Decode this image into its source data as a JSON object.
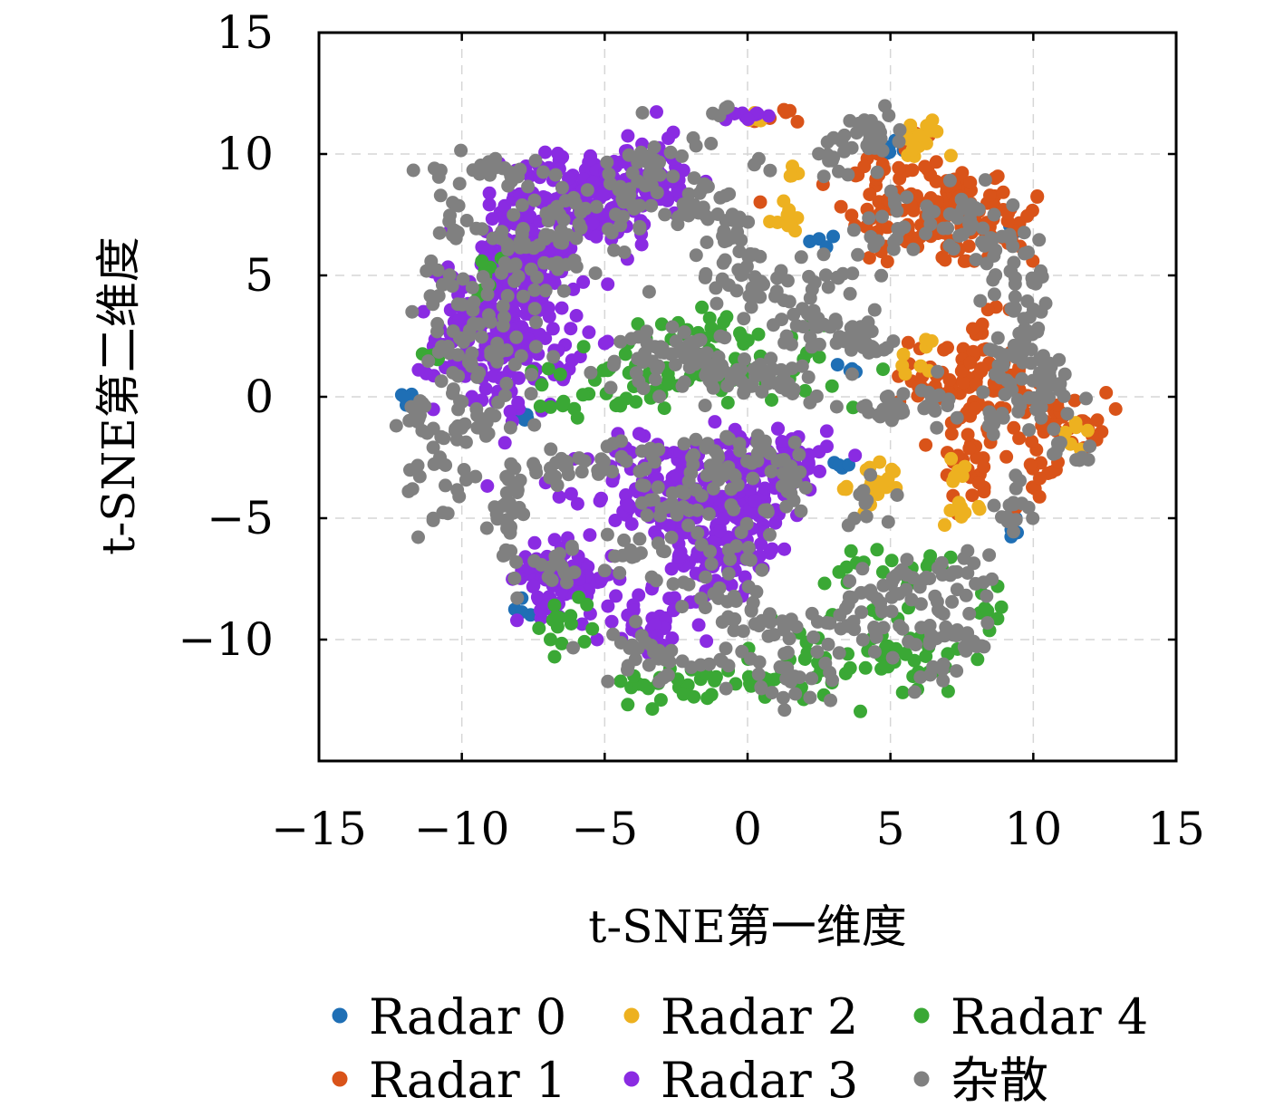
{
  "chart_data": {
    "type": "scatter",
    "title": "",
    "xlabel": "t-SNE第一维度",
    "ylabel": "t-SNE第二维度",
    "xlim": [
      -15,
      15
    ],
    "ylim": [
      -15,
      15
    ],
    "x_ticks": [
      -15,
      -10,
      -5,
      0,
      5,
      10,
      15
    ],
    "y_ticks": [
      -10,
      -5,
      0,
      5,
      10,
      15
    ],
    "grid": true,
    "legend_position": "bottom",
    "series": [
      {
        "name": "Radar 0",
        "color": "#1f6fb5",
        "clusters": [
          {
            "cx": 4.9,
            "cy": 10.3,
            "sx": 0.2,
            "sy": 0.2,
            "n": 6
          },
          {
            "cx": 2.6,
            "cy": 6.3,
            "sx": 0.3,
            "sy": 0.2,
            "n": 4
          },
          {
            "cx": 9.3,
            "cy": 6.8,
            "sx": 0.2,
            "sy": 0.3,
            "n": 5
          },
          {
            "cx": -12.0,
            "cy": 0.0,
            "sx": 0.2,
            "sy": 0.2,
            "n": 4
          },
          {
            "cx": -7.9,
            "cy": -0.8,
            "sx": 0.2,
            "sy": 0.2,
            "n": 4
          },
          {
            "cx": 3.7,
            "cy": 1.2,
            "sx": 0.3,
            "sy": 0.3,
            "n": 4
          },
          {
            "cx": 3.2,
            "cy": -3.0,
            "sx": 0.3,
            "sy": 0.2,
            "n": 4
          },
          {
            "cx": 9.4,
            "cy": -5.4,
            "sx": 0.2,
            "sy": 0.3,
            "n": 5
          },
          {
            "cx": -7.7,
            "cy": -8.5,
            "sx": 0.3,
            "sy": 0.3,
            "n": 4
          }
        ]
      },
      {
        "name": "Radar 1",
        "color": "#d95319",
        "clusters": [
          {
            "cx": 6.5,
            "cy": 7.5,
            "sx": 1.5,
            "sy": 1.1,
            "n": 120
          },
          {
            "cx": 5.5,
            "cy": 9.5,
            "sx": 0.8,
            "sy": 0.9,
            "n": 20
          },
          {
            "cx": 9.0,
            "cy": 7.0,
            "sx": 0.7,
            "sy": 1.0,
            "n": 25
          },
          {
            "cx": 7.8,
            "cy": 0.8,
            "sx": 1.0,
            "sy": 1.2,
            "n": 90
          },
          {
            "cx": 7.8,
            "cy": -2.5,
            "sx": 0.6,
            "sy": 1.0,
            "n": 30
          },
          {
            "cx": 11.0,
            "cy": -1.0,
            "sx": 0.8,
            "sy": 0.6,
            "n": 35
          },
          {
            "cx": 10.2,
            "cy": -3.5,
            "sx": 0.5,
            "sy": 0.6,
            "n": 12
          },
          {
            "cx": 1.0,
            "cy": 11.5,
            "sx": 0.4,
            "sy": 0.2,
            "n": 6
          },
          {
            "cx": 4.0,
            "cy": 9.2,
            "sx": 0.3,
            "sy": 0.3,
            "n": 5
          }
        ]
      },
      {
        "name": "Radar 2",
        "color": "#edb120",
        "clusters": [
          {
            "cx": 1.3,
            "cy": 7.3,
            "sx": 0.3,
            "sy": 0.3,
            "n": 10
          },
          {
            "cx": 1.5,
            "cy": 9.3,
            "sx": 0.3,
            "sy": 0.2,
            "n": 5
          },
          {
            "cx": 6.0,
            "cy": 10.5,
            "sx": 0.4,
            "sy": 0.5,
            "n": 18
          },
          {
            "cx": 4.5,
            "cy": -3.6,
            "sx": 0.5,
            "sy": 0.5,
            "n": 20
          },
          {
            "cx": 5.8,
            "cy": 1.7,
            "sx": 0.3,
            "sy": 0.3,
            "n": 8
          },
          {
            "cx": 7.6,
            "cy": -5.0,
            "sx": 0.3,
            "sy": 0.4,
            "n": 8
          },
          {
            "cx": 7.5,
            "cy": -3.0,
            "sx": 0.3,
            "sy": 0.3,
            "n": 6
          },
          {
            "cx": 11.6,
            "cy": -1.7,
            "sx": 0.3,
            "sy": 0.3,
            "n": 6
          },
          {
            "cx": 0.2,
            "cy": 11.6,
            "sx": 0.3,
            "sy": 0.2,
            "n": 4
          }
        ]
      },
      {
        "name": "Radar 3",
        "color": "#8a2be2",
        "clusters": [
          {
            "cx": -8.5,
            "cy": 2.5,
            "sx": 1.2,
            "sy": 1.6,
            "n": 200
          },
          {
            "cx": -8.0,
            "cy": 5.5,
            "sx": 1.0,
            "sy": 1.2,
            "n": 120
          },
          {
            "cx": -5.5,
            "cy": 8.3,
            "sx": 1.4,
            "sy": 1.0,
            "n": 150
          },
          {
            "cx": -3.3,
            "cy": 9.0,
            "sx": 0.8,
            "sy": 0.8,
            "n": 40
          },
          {
            "cx": -3.0,
            "cy": -3.8,
            "sx": 1.3,
            "sy": 1.1,
            "n": 110
          },
          {
            "cx": -0.5,
            "cy": -4.5,
            "sx": 1.1,
            "sy": 1.6,
            "n": 120
          },
          {
            "cx": 1.2,
            "cy": -2.8,
            "sx": 0.8,
            "sy": 0.9,
            "n": 60
          },
          {
            "cx": -6.5,
            "cy": -7.5,
            "sx": 0.9,
            "sy": 0.7,
            "n": 80
          },
          {
            "cx": -3.5,
            "cy": -9.3,
            "sx": 0.9,
            "sy": 0.6,
            "n": 40
          },
          {
            "cx": -1.5,
            "cy": -6.8,
            "sx": 0.7,
            "sy": 0.7,
            "n": 40
          },
          {
            "cx": 0.0,
            "cy": 11.6,
            "sx": 0.5,
            "sy": 0.2,
            "n": 10
          },
          {
            "cx": -2.5,
            "cy": 11.0,
            "sx": 0.2,
            "sy": 0.2,
            "n": 2
          }
        ]
      },
      {
        "name": "Radar 4",
        "color": "#3aa835",
        "clusters": [
          {
            "cx": -1.5,
            "cy": 1.0,
            "sx": 2.5,
            "sy": 0.5,
            "n": 60
          },
          {
            "cx": -1.0,
            "cy": 2.8,
            "sx": 1.6,
            "sy": 0.4,
            "n": 30
          },
          {
            "cx": -5.0,
            "cy": -0.2,
            "sx": 1.5,
            "sy": 0.5,
            "n": 25
          },
          {
            "cx": -9.0,
            "cy": 4.8,
            "sx": 0.4,
            "sy": 0.5,
            "n": 8
          },
          {
            "cx": -11.0,
            "cy": 1.5,
            "sx": 0.3,
            "sy": 0.4,
            "n": 5
          },
          {
            "cx": -1.0,
            "cy": -11.8,
            "sx": 2.0,
            "sy": 0.4,
            "n": 45
          },
          {
            "cx": 3.0,
            "cy": -10.5,
            "sx": 1.6,
            "sy": 1.0,
            "n": 30
          },
          {
            "cx": 6.0,
            "cy": -10.8,
            "sx": 0.8,
            "sy": 0.7,
            "n": 25
          },
          {
            "cx": 4.8,
            "cy": -7.0,
            "sx": 1.2,
            "sy": 0.4,
            "n": 20
          },
          {
            "cx": -6.5,
            "cy": -9.0,
            "sx": 0.5,
            "sy": 0.8,
            "n": 15
          },
          {
            "cx": 8.5,
            "cy": -9.0,
            "sx": 0.4,
            "sy": 0.5,
            "n": 8
          }
        ]
      },
      {
        "name": "杂散",
        "color": "#808080",
        "clusters": [
          {
            "cx": -9.0,
            "cy": 9.4,
            "sx": 0.9,
            "sy": 0.3,
            "n": 25
          },
          {
            "cx": -10.2,
            "cy": 7.5,
            "sx": 0.4,
            "sy": 1.0,
            "n": 15
          },
          {
            "cx": -10.5,
            "cy": 3.0,
            "sx": 0.6,
            "sy": 1.5,
            "n": 30
          },
          {
            "cx": -9.0,
            "cy": 2.5,
            "sx": 1.0,
            "sy": 1.4,
            "n": 50
          },
          {
            "cx": -7.5,
            "cy": 6.0,
            "sx": 0.9,
            "sy": 1.4,
            "n": 40
          },
          {
            "cx": -5.0,
            "cy": 7.5,
            "sx": 1.2,
            "sy": 1.2,
            "n": 50
          },
          {
            "cx": -3.0,
            "cy": 9.5,
            "sx": 0.6,
            "sy": 0.8,
            "n": 25
          },
          {
            "cx": -1.5,
            "cy": 8.0,
            "sx": 0.6,
            "sy": 0.6,
            "n": 20
          },
          {
            "cx": 0.8,
            "cy": 4.7,
            "sx": 1.2,
            "sy": 0.6,
            "n": 40
          },
          {
            "cx": -0.5,
            "cy": 6.5,
            "sx": 0.7,
            "sy": 0.6,
            "n": 20
          },
          {
            "cx": 2.5,
            "cy": 3.0,
            "sx": 0.8,
            "sy": 0.5,
            "n": 30
          },
          {
            "cx": 3.8,
            "cy": 2.2,
            "sx": 0.5,
            "sy": 0.4,
            "n": 12
          },
          {
            "cx": -0.5,
            "cy": 0.7,
            "sx": 1.5,
            "sy": 0.4,
            "n": 40
          },
          {
            "cx": -3.0,
            "cy": 1.5,
            "sx": 1.2,
            "sy": 0.5,
            "n": 30
          },
          {
            "cx": -2.0,
            "cy": 2.0,
            "sx": 1.0,
            "sy": 0.4,
            "n": 25
          },
          {
            "cx": 1.5,
            "cy": 0.8,
            "sx": 0.6,
            "sy": 0.4,
            "n": 15
          },
          {
            "cx": -9.5,
            "cy": -1.0,
            "sx": 1.2,
            "sy": 0.5,
            "n": 25
          },
          {
            "cx": -11.5,
            "cy": -0.5,
            "sx": 0.3,
            "sy": 0.5,
            "n": 10
          },
          {
            "cx": -10.8,
            "cy": -3.3,
            "sx": 0.6,
            "sy": 1.2,
            "n": 25
          },
          {
            "cx": -8.5,
            "cy": -5.5,
            "sx": 0.4,
            "sy": 1.5,
            "n": 25
          },
          {
            "cx": -7.8,
            "cy": -4.3,
            "sx": 0.4,
            "sy": 0.5,
            "n": 10
          },
          {
            "cx": -7.0,
            "cy": -3.0,
            "sx": 0.8,
            "sy": 0.4,
            "n": 15
          },
          {
            "cx": -5.5,
            "cy": -2.8,
            "sx": 0.6,
            "sy": 0.3,
            "n": 12
          },
          {
            "cx": -4.0,
            "cy": -2.3,
            "sx": 0.9,
            "sy": 0.3,
            "n": 15
          },
          {
            "cx": -2.5,
            "cy": -4.0,
            "sx": 1.0,
            "sy": 0.8,
            "n": 35
          },
          {
            "cx": -1.0,
            "cy": -3.0,
            "sx": 0.8,
            "sy": 0.7,
            "n": 25
          },
          {
            "cx": 0.5,
            "cy": -2.0,
            "sx": 0.5,
            "sy": 0.4,
            "n": 12
          },
          {
            "cx": 1.5,
            "cy": -3.5,
            "sx": 0.5,
            "sy": 0.8,
            "n": 15
          },
          {
            "cx": -6.5,
            "cy": -7.0,
            "sx": 0.6,
            "sy": 0.5,
            "n": 15
          },
          {
            "cx": -3.5,
            "cy": -6.5,
            "sx": 0.8,
            "sy": 0.7,
            "n": 20
          },
          {
            "cx": -0.5,
            "cy": -8.0,
            "sx": 0.8,
            "sy": 1.0,
            "n": 25
          },
          {
            "cx": 0.5,
            "cy": -5.0,
            "sx": 0.6,
            "sy": 0.8,
            "n": 15
          },
          {
            "cx": 4.5,
            "cy": 6.5,
            "sx": 1.0,
            "sy": 1.0,
            "n": 25
          },
          {
            "cx": 4.5,
            "cy": 10.7,
            "sx": 0.5,
            "sy": 0.6,
            "n": 25
          },
          {
            "cx": 3.2,
            "cy": 10.3,
            "sx": 0.5,
            "sy": 0.7,
            "n": 15
          },
          {
            "cx": 7.5,
            "cy": 7.3,
            "sx": 0.8,
            "sy": 0.8,
            "n": 30
          },
          {
            "cx": 9.0,
            "cy": 5.5,
            "sx": 0.6,
            "sy": 0.8,
            "n": 25
          },
          {
            "cx": 9.8,
            "cy": 3.0,
            "sx": 0.6,
            "sy": 1.2,
            "n": 35
          },
          {
            "cx": 10.5,
            "cy": 0.5,
            "sx": 0.6,
            "sy": 1.0,
            "n": 30
          },
          {
            "cx": 6.5,
            "cy": -0.5,
            "sx": 0.5,
            "sy": 0.6,
            "n": 15
          },
          {
            "cx": 8.8,
            "cy": 0.0,
            "sx": 0.6,
            "sy": 1.2,
            "n": 25
          },
          {
            "cx": 9.5,
            "cy": -4.5,
            "sx": 0.4,
            "sy": 0.8,
            "n": 15
          },
          {
            "cx": 11.5,
            "cy": -2.2,
            "sx": 0.6,
            "sy": 0.4,
            "n": 10
          },
          {
            "cx": 4.8,
            "cy": -0.5,
            "sx": 0.8,
            "sy": 0.3,
            "n": 20
          },
          {
            "cx": 4.5,
            "cy": 2.5,
            "sx": 0.5,
            "sy": 0.4,
            "n": 10
          },
          {
            "cx": 4.2,
            "cy": -4.5,
            "sx": 0.6,
            "sy": 0.5,
            "n": 10
          },
          {
            "cx": 5.5,
            "cy": -8.0,
            "sx": 1.0,
            "sy": 0.7,
            "n": 30
          },
          {
            "cx": 6.5,
            "cy": -9.5,
            "sx": 0.8,
            "sy": 1.0,
            "n": 35
          },
          {
            "cx": 3.5,
            "cy": -9.5,
            "sx": 1.0,
            "sy": 0.8,
            "n": 30
          },
          {
            "cx": 1.5,
            "cy": -11.5,
            "sx": 0.9,
            "sy": 0.5,
            "n": 25
          },
          {
            "cx": 0.5,
            "cy": -9.5,
            "sx": 0.8,
            "sy": 0.6,
            "n": 20
          },
          {
            "cx": -2.5,
            "cy": -11.0,
            "sx": 1.2,
            "sy": 0.4,
            "n": 25
          },
          {
            "cx": -4.2,
            "cy": -10.0,
            "sx": 0.4,
            "sy": 0.3,
            "n": 8
          },
          {
            "cx": 7.8,
            "cy": -7.5,
            "sx": 0.5,
            "sy": 0.6,
            "n": 10
          },
          {
            "cx": 7.8,
            "cy": -10.0,
            "sx": 0.4,
            "sy": 0.5,
            "n": 8
          },
          {
            "cx": -1.0,
            "cy": 11.6,
            "sx": 0.3,
            "sy": 0.2,
            "n": 4
          },
          {
            "cx": 0.5,
            "cy": 9.4,
            "sx": 0.3,
            "sy": 0.2,
            "n": 3
          }
        ]
      }
    ]
  }
}
